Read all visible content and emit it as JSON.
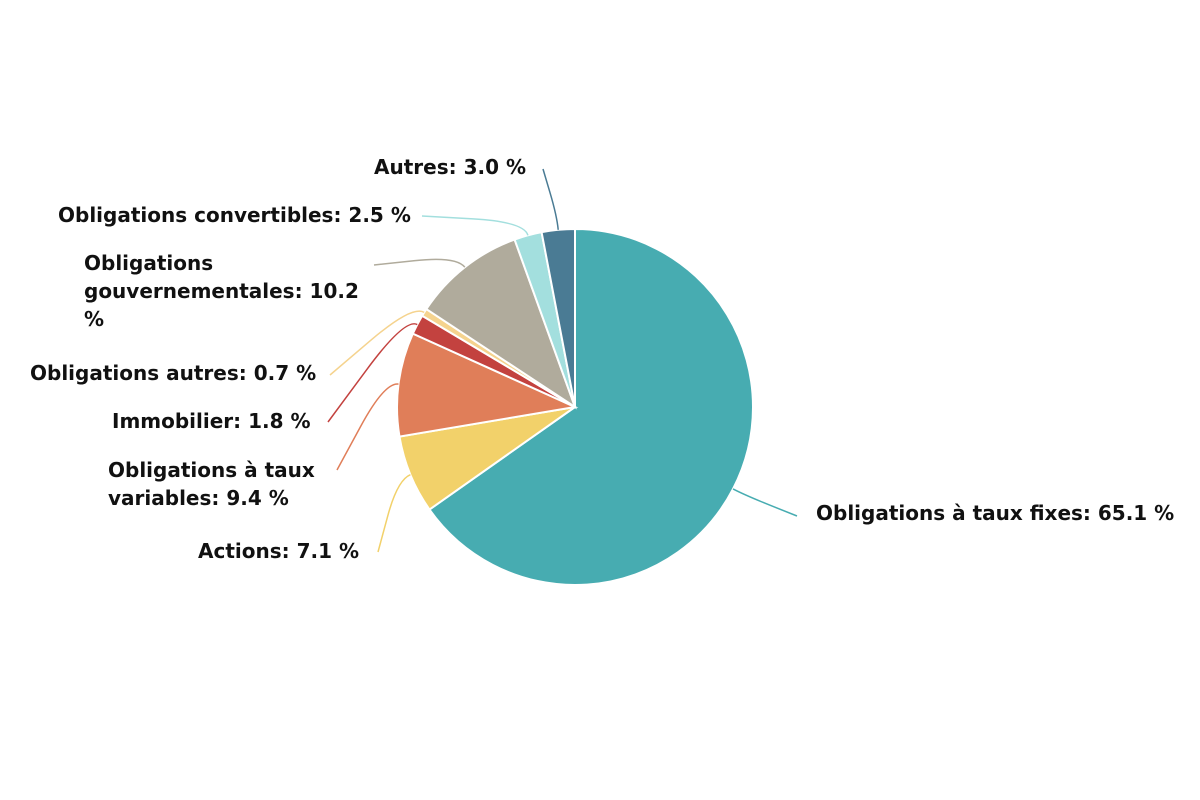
{
  "chart_data": {
    "type": "pie",
    "values": [
      65.1,
      7.1,
      9.4,
      1.8,
      0.7,
      10.2,
      2.5,
      3.0
    ],
    "value_labels": [
      "Obligations à taux fixes: 65.1 %",
      "Actions: 7.1 %",
      "Obligations à taux variables: 9.4 %",
      "Immobilier: 1.8 %",
      "Obligations autres: 0.7 %",
      "Obligations gouvernementales: 10.2 %",
      "Obligations convertibles: 2.5 %",
      "Autres: 3.0 %"
    ],
    "colors": [
      "#47acb1",
      "#f2d16a",
      "#e07e59",
      "#c3423f",
      "#f5d38e",
      "#b0ab9c",
      "#a3dfde",
      "#4a7b94"
    ]
  }
}
